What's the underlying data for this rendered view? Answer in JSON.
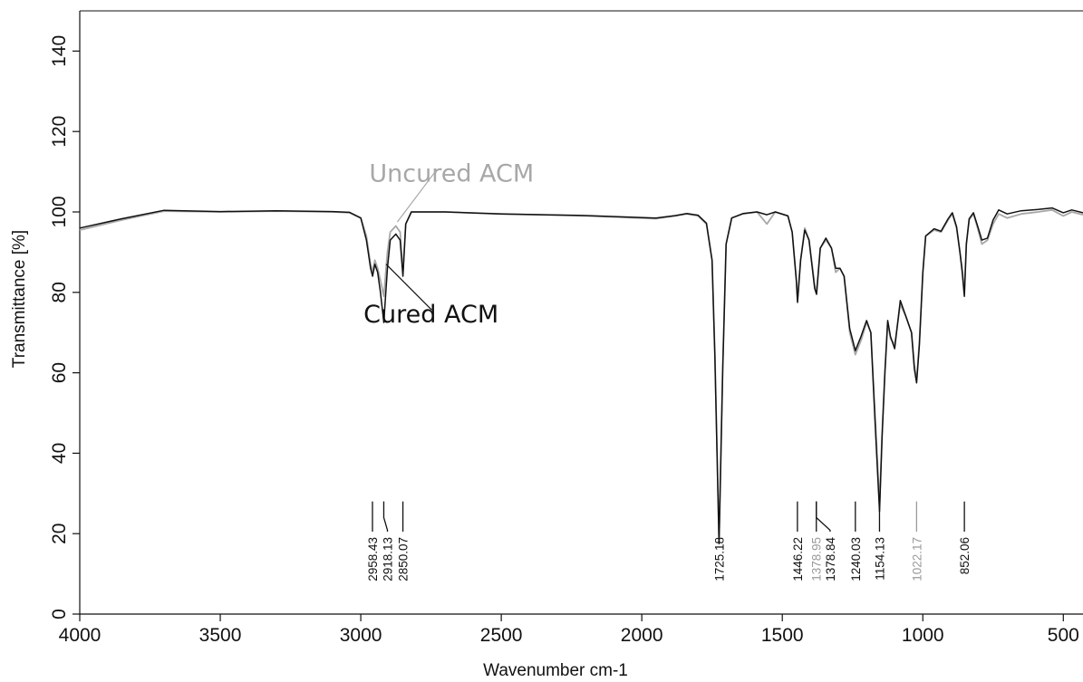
{
  "chart_data": {
    "type": "line",
    "title": "",
    "xlabel": "Wavenumber cm-1",
    "ylabel": "Transmittance [%]",
    "xlim": [
      4000,
      430
    ],
    "ylim": [
      0,
      150
    ],
    "x_reversed": true,
    "grid": false,
    "x_ticks": [
      {
        "value": 4000,
        "label": "4000"
      },
      {
        "value": 3500,
        "label": "3500"
      },
      {
        "value": 3000,
        "label": "3000"
      },
      {
        "value": 2500,
        "label": "2500"
      },
      {
        "value": 2000,
        "label": "2000"
      },
      {
        "value": 1500,
        "label": "1500"
      },
      {
        "value": 1000,
        "label": "1000"
      },
      {
        "value": 500,
        "label": "500"
      }
    ],
    "y_ticks": [
      {
        "value": 0,
        "label": "0"
      },
      {
        "value": 20,
        "label": "20"
      },
      {
        "value": 40,
        "label": "40"
      },
      {
        "value": 60,
        "label": "60"
      },
      {
        "value": 80,
        "label": "80"
      },
      {
        "value": 100,
        "label": "100"
      },
      {
        "value": 120,
        "label": "120"
      },
      {
        "value": 140,
        "label": "140"
      }
    ],
    "series": [
      {
        "name": "Uncured ACM",
        "color": "#a8a8a8",
        "points": [
          [
            4000,
            95.5
          ],
          [
            3850,
            98
          ],
          [
            3700,
            100.2
          ],
          [
            3500,
            100
          ],
          [
            3300,
            100.2
          ],
          [
            3100,
            100
          ],
          [
            3040,
            99.8
          ],
          [
            3000,
            98.5
          ],
          [
            2980,
            94
          ],
          [
            2965,
            87
          ],
          [
            2958,
            85
          ],
          [
            2950,
            88
          ],
          [
            2940,
            86
          ],
          [
            2930,
            83
          ],
          [
            2918,
            79
          ],
          [
            2905,
            90
          ],
          [
            2895,
            95
          ],
          [
            2875,
            96.5
          ],
          [
            2860,
            95
          ],
          [
            2850,
            85
          ],
          [
            2840,
            97
          ],
          [
            2820,
            100
          ],
          [
            2700,
            100
          ],
          [
            2500,
            99.5
          ],
          [
            2200,
            99
          ],
          [
            1950,
            98.3
          ],
          [
            1880,
            99
          ],
          [
            1840,
            99.5
          ],
          [
            1800,
            99
          ],
          [
            1770,
            97
          ],
          [
            1750,
            88
          ],
          [
            1740,
            65
          ],
          [
            1725,
            18.5
          ],
          [
            1712,
            62
          ],
          [
            1700,
            92
          ],
          [
            1680,
            98.5
          ],
          [
            1640,
            99.5
          ],
          [
            1590,
            100
          ],
          [
            1555,
            97
          ],
          [
            1525,
            100
          ],
          [
            1480,
            99
          ],
          [
            1465,
            95
          ],
          [
            1450,
            83
          ],
          [
            1446,
            78
          ],
          [
            1435,
            88
          ],
          [
            1420,
            96
          ],
          [
            1405,
            93
          ],
          [
            1385,
            82
          ],
          [
            1378,
            80
          ],
          [
            1365,
            91
          ],
          [
            1345,
            93
          ],
          [
            1325,
            91
          ],
          [
            1310,
            85
          ],
          [
            1295,
            86
          ],
          [
            1280,
            84
          ],
          [
            1260,
            70
          ],
          [
            1240,
            64.5
          ],
          [
            1220,
            68
          ],
          [
            1200,
            72.5
          ],
          [
            1185,
            70
          ],
          [
            1170,
            50
          ],
          [
            1160,
            36
          ],
          [
            1154,
            27
          ],
          [
            1145,
            45
          ],
          [
            1135,
            60
          ],
          [
            1125,
            72.5
          ],
          [
            1115,
            68.5
          ],
          [
            1100,
            67
          ],
          [
            1090,
            72
          ],
          [
            1080,
            77
          ],
          [
            1060,
            74
          ],
          [
            1040,
            70
          ],
          [
            1030,
            62
          ],
          [
            1022,
            58
          ],
          [
            1012,
            68
          ],
          [
            1000,
            85
          ],
          [
            990,
            94
          ],
          [
            960,
            95.5
          ],
          [
            935,
            95
          ],
          [
            910,
            98
          ],
          [
            895,
            99.5
          ],
          [
            880,
            96
          ],
          [
            868,
            90
          ],
          [
            860,
            86
          ],
          [
            852,
            80
          ],
          [
            845,
            92
          ],
          [
            835,
            98
          ],
          [
            820,
            99.5
          ],
          [
            805,
            96
          ],
          [
            790,
            92
          ],
          [
            770,
            93
          ],
          [
            750,
            97
          ],
          [
            730,
            99.5
          ],
          [
            700,
            98.5
          ],
          [
            650,
            99.5
          ],
          [
            590,
            100
          ],
          [
            540,
            100.5
          ],
          [
            500,
            99
          ],
          [
            470,
            100
          ],
          [
            430,
            99.3
          ]
        ]
      },
      {
        "name": "Cured ACM",
        "color": "#111111",
        "points": [
          [
            4000,
            96
          ],
          [
            3850,
            98.3
          ],
          [
            3700,
            100.4
          ],
          [
            3500,
            100.1
          ],
          [
            3300,
            100.3
          ],
          [
            3100,
            100.1
          ],
          [
            3040,
            99.9
          ],
          [
            3000,
            98.5
          ],
          [
            2980,
            93
          ],
          [
            2965,
            86
          ],
          [
            2958,
            84
          ],
          [
            2950,
            87
          ],
          [
            2940,
            85
          ],
          [
            2930,
            80
          ],
          [
            2918,
            72.5
          ],
          [
            2905,
            86
          ],
          [
            2895,
            93
          ],
          [
            2875,
            94.5
          ],
          [
            2860,
            93
          ],
          [
            2850,
            84
          ],
          [
            2840,
            97
          ],
          [
            2820,
            100
          ],
          [
            2700,
            100
          ],
          [
            2500,
            99.5
          ],
          [
            2200,
            99.1
          ],
          [
            1950,
            98.5
          ],
          [
            1880,
            99.1
          ],
          [
            1840,
            99.6
          ],
          [
            1800,
            99.2
          ],
          [
            1770,
            97.2
          ],
          [
            1750,
            88
          ],
          [
            1740,
            64
          ],
          [
            1725,
            17.5
          ],
          [
            1712,
            61
          ],
          [
            1700,
            92
          ],
          [
            1680,
            98.5
          ],
          [
            1640,
            99.6
          ],
          [
            1590,
            100
          ],
          [
            1555,
            99.3
          ],
          [
            1525,
            100
          ],
          [
            1480,
            99
          ],
          [
            1465,
            95
          ],
          [
            1450,
            83
          ],
          [
            1446,
            77.5
          ],
          [
            1435,
            88
          ],
          [
            1420,
            95.5
          ],
          [
            1405,
            93
          ],
          [
            1385,
            81
          ],
          [
            1378,
            79.5
          ],
          [
            1365,
            91
          ],
          [
            1345,
            93.5
          ],
          [
            1325,
            91
          ],
          [
            1310,
            86
          ],
          [
            1295,
            86
          ],
          [
            1280,
            84
          ],
          [
            1260,
            71
          ],
          [
            1240,
            65.5
          ],
          [
            1220,
            69
          ],
          [
            1200,
            73
          ],
          [
            1185,
            70
          ],
          [
            1170,
            48
          ],
          [
            1160,
            34
          ],
          [
            1154,
            25.5
          ],
          [
            1145,
            44
          ],
          [
            1135,
            60
          ],
          [
            1125,
            73
          ],
          [
            1115,
            69
          ],
          [
            1100,
            66
          ],
          [
            1090,
            72
          ],
          [
            1080,
            78
          ],
          [
            1060,
            74
          ],
          [
            1040,
            70
          ],
          [
            1030,
            61
          ],
          [
            1022,
            57.5
          ],
          [
            1012,
            67
          ],
          [
            1000,
            85
          ],
          [
            990,
            94
          ],
          [
            960,
            95.8
          ],
          [
            935,
            95.2
          ],
          [
            910,
            98.3
          ],
          [
            895,
            99.8
          ],
          [
            880,
            96.3
          ],
          [
            868,
            90
          ],
          [
            860,
            85
          ],
          [
            852,
            79
          ],
          [
            845,
            92
          ],
          [
            835,
            98.3
          ],
          [
            820,
            99.8
          ],
          [
            805,
            96.5
          ],
          [
            790,
            93
          ],
          [
            770,
            93.5
          ],
          [
            750,
            98
          ],
          [
            730,
            100.5
          ],
          [
            700,
            99.5
          ],
          [
            650,
            100.3
          ],
          [
            590,
            100.6
          ],
          [
            540,
            101
          ],
          [
            500,
            99.8
          ],
          [
            470,
            100.5
          ],
          [
            430,
            99.8
          ]
        ]
      }
    ],
    "series_labels": [
      {
        "text": "Uncured ACM",
        "color": "#a8a8a8",
        "x": 2970,
        "y": 107.5,
        "pointer_to": [
          2870,
          97.5
        ]
      },
      {
        "text": "Cured ACM",
        "color": "#111111",
        "x": 2990,
        "y": 72.5,
        "pointer_to": [
          2910,
          87
        ]
      }
    ],
    "peak_labels": [
      {
        "text": "2958.43",
        "x": 2958.43,
        "color": "#111111",
        "line_color": "#111111",
        "shift_to": null
      },
      {
        "text": "2918.13",
        "x": 2918.13,
        "color": "#111111",
        "line_color": "#111111",
        "shift_to": 2905
      },
      {
        "text": "2850.07",
        "x": 2850.07,
        "color": "#111111",
        "line_color": "#111111",
        "shift_to": null
      },
      {
        "text": "1725.18",
        "x": 1725.18,
        "color": "#111111",
        "line_color": "#111111",
        "shift_to": null
      },
      {
        "text": "1446.22",
        "x": 1446.22,
        "color": "#111111",
        "line_color": "#111111",
        "shift_to": null
      },
      {
        "text": "1378.95",
        "x": 1378.95,
        "color": "#9a9a9a",
        "line_color": "#111111",
        "shift_to": null
      },
      {
        "text": "1378.84",
        "x": 1378.84,
        "color": "#111111",
        "line_color": "#111111",
        "shift_to": 1330
      },
      {
        "text": "1240.03",
        "x": 1240.03,
        "color": "#111111",
        "line_color": "#111111",
        "shift_to": null
      },
      {
        "text": "1154.13",
        "x": 1154.13,
        "color": "#111111",
        "line_color": "#111111",
        "shift_to": null
      },
      {
        "text": "1022.17",
        "x": 1022.17,
        "color": "#9a9a9a",
        "line_color": "#9a9a9a",
        "shift_to": null
      },
      {
        "text": "852.06",
        "x": 852.06,
        "color": "#111111",
        "line_color": "#111111",
        "shift_to": null
      }
    ]
  }
}
